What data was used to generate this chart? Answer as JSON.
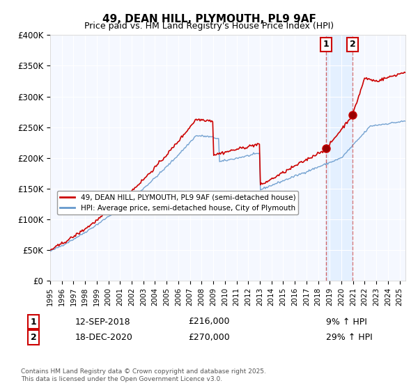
{
  "title": "49, DEAN HILL, PLYMOUTH, PL9 9AF",
  "subtitle": "Price paid vs. HM Land Registry's House Price Index (HPI)",
  "legend_line1": "49, DEAN HILL, PLYMOUTH, PL9 9AF (semi-detached house)",
  "legend_line2": "HPI: Average price, semi-detached house, City of Plymouth",
  "annotation1_label": "1",
  "annotation1_date": "12-SEP-2018",
  "annotation1_price": "£216,000",
  "annotation1_hpi": "9% ↑ HPI",
  "annotation2_label": "2",
  "annotation2_date": "18-DEC-2020",
  "annotation2_price": "£270,000",
  "annotation2_hpi": "29% ↑ HPI",
  "vline1_x": 2018.7,
  "vline2_x": 2020.96,
  "marker1_hpi_y": 216000,
  "marker2_hpi_y": 270000,
  "red_color": "#cc0000",
  "blue_color": "#6699cc",
  "shade_color": "#ddeeff",
  "vline_color": "#cc4444",
  "footer": "Contains HM Land Registry data © Crown copyright and database right 2025.\nThis data is licensed under the Open Government Licence v3.0.",
  "ylim": [
    0,
    400000
  ],
  "yticks": [
    0,
    50000,
    100000,
    150000,
    200000,
    250000,
    300000,
    350000,
    400000
  ],
  "ytick_labels": [
    "£0",
    "£50K",
    "£100K",
    "£150K",
    "£200K",
    "£250K",
    "£300K",
    "£350K",
    "£400K"
  ],
  "xlim": [
    1995,
    2025.5
  ],
  "xtick_years": [
    1995,
    1996,
    1997,
    1998,
    1999,
    2000,
    2001,
    2002,
    2003,
    2004,
    2005,
    2006,
    2007,
    2008,
    2009,
    2010,
    2011,
    2012,
    2013,
    2014,
    2015,
    2016,
    2017,
    2018,
    2019,
    2020,
    2021,
    2022,
    2023,
    2024,
    2025
  ]
}
